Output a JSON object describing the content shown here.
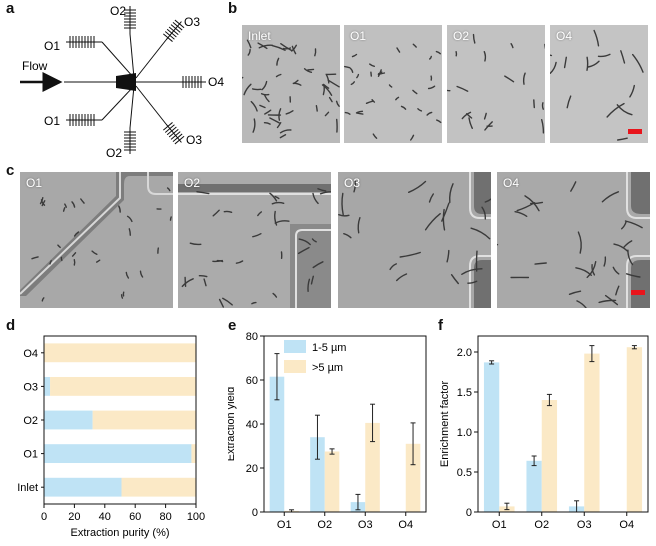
{
  "panels": {
    "a": {
      "label": "a",
      "flow_label": "Flow",
      "outlets": [
        "O1",
        "O2",
        "O3",
        "O4",
        "O3",
        "O2",
        "O1"
      ]
    },
    "b": {
      "label": "b",
      "images": [
        "Inlet",
        "O1",
        "O2",
        "O4"
      ],
      "scalebar_color": "#e8141b"
    },
    "c": {
      "label": "c",
      "images": [
        "O1",
        "O2",
        "O3",
        "O4"
      ],
      "scalebar_color": "#e8141b"
    },
    "d": {
      "label": "d"
    },
    "e": {
      "label": "e"
    },
    "f": {
      "label": "f"
    }
  },
  "colors": {
    "small_particles": "#bfe3f5",
    "large_particles": "#fbe9c6",
    "error_bars": "#222222"
  },
  "chart_data": [
    {
      "id": "d",
      "type": "bar",
      "orientation": "horizontal",
      "stacked": true,
      "categories": [
        "O4",
        "O3",
        "O2",
        "O1",
        "Inlet"
      ],
      "series": [
        {
          "values": [
            0,
            4,
            32,
            97,
            51
          ]
        },
        {
          "values": [
            100,
            96,
            68,
            3,
            49
          ]
        }
      ],
      "xlabel": "Extraction purity (%)",
      "xlim": [
        0,
        100
      ],
      "xticks": [
        "0",
        "20",
        "40",
        "60",
        "80",
        "100"
      ]
    },
    {
      "id": "e",
      "type": "bar",
      "categories": [
        "O1",
        "O2",
        "O3",
        "O4"
      ],
      "series": [
        {
          "name": "1-5 µm",
          "values": [
            61.5,
            34,
            4.5,
            0
          ],
          "errors": [
            10.5,
            10,
            3.5,
            0
          ]
        },
        {
          "name": ">5 µm",
          "values": [
            0.5,
            27.5,
            40.5,
            31
          ],
          "errors": [
            0.5,
            1.2,
            8.5,
            9.5
          ]
        }
      ],
      "ylabel": "Extraction yield",
      "ylim": [
        0,
        80
      ],
      "yticks": [
        "0",
        "20",
        "40",
        "60",
        "80"
      ],
      "legend": "top-right"
    },
    {
      "id": "f",
      "type": "bar",
      "categories": [
        "O1",
        "O2",
        "O3",
        "O4"
      ],
      "series": [
        {
          "values": [
            1.87,
            0.64,
            0.07,
            0
          ],
          "errors": [
            0.02,
            0.06,
            0.07,
            0
          ]
        },
        {
          "values": [
            0.07,
            1.4,
            1.98,
            2.06
          ],
          "errors": [
            0.04,
            0.07,
            0.1,
            0.02
          ]
        }
      ],
      "ylabel": "Enrichment factor",
      "ylim": [
        0,
        2.2
      ],
      "yticks": [
        "0",
        "0.5",
        "1.0",
        "1.5",
        "2.0"
      ]
    }
  ]
}
